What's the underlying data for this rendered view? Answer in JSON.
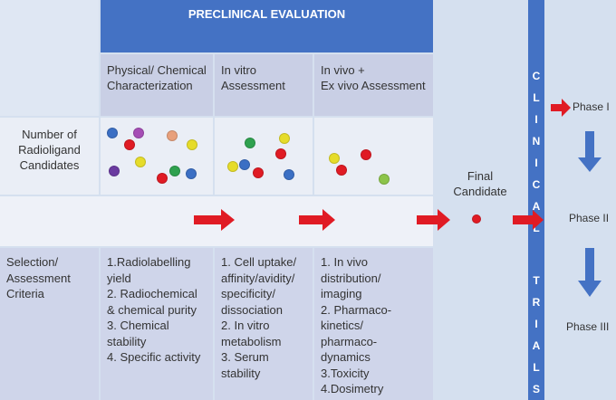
{
  "header": {
    "title": "PRECLINICAL EVALUATION"
  },
  "stages": [
    {
      "title": "Physical/ Chemical\nCharacterization",
      "criteria": "1.Radiolabelling\nyield\n2. Radiochemical\n& chemical purity\n3. Chemical\nstability\n4. Specific activity",
      "candidate_colors": [
        "#3b6fc4",
        "#a54db5",
        "#e8a07c",
        "#e01b24",
        "#e6dc2a",
        "#e6dc2a",
        "#6a3aa0",
        "#e01b24",
        "#2fa14f",
        "#3b6fc4"
      ]
    },
    {
      "title": "In vitro\nAssessment",
      "criteria": "1. Cell uptake/\naffinity/avidity/\nspecificity/\ndissociation\n2. In vitro\nmetabolism\n3. Serum\nstability",
      "candidate_colors": [
        "#2fa14f",
        "#e6dc2a",
        "#e01b24",
        "#e6dc2a",
        "#3b6fc4",
        "#e01b24",
        "#3b6fc4"
      ]
    },
    {
      "title": "In vivo +\nEx vivo Assessment",
      "criteria": "1. In vivo\ndistribution/\nimaging\n2. Pharmaco-\nkinetics/\npharmaco-\ndynamics\n3.Toxicity\n4.Dosimetry",
      "candidate_colors": [
        "#e6dc2a",
        "#e01b24",
        "#e01b24",
        "#8cc44a"
      ]
    }
  ],
  "rows": {
    "candidates_label": "Number of\nRadioligand\nCandidates",
    "criteria_label": "Selection/\nAssessment\nCriteria"
  },
  "final": {
    "label": "Final\nCandidate",
    "color": "#e01b24"
  },
  "clinical": {
    "top": "C\nL\nI\nN\nI\nC\nA\nL",
    "bottom": "T\nR\nI\nA\nL\nS"
  },
  "phases": [
    "Phase I",
    "Phase II",
    "Phase III"
  ],
  "colors": {
    "header": "#4472c4",
    "arrow_red": "#e01b24",
    "arrow_blue": "#4472c4"
  }
}
